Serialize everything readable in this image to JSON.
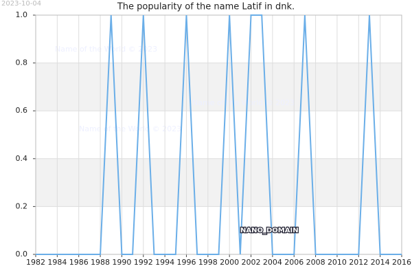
{
  "chart_data": {
    "type": "line",
    "title": "The popularity of the name Latif in dnk.",
    "date_stamp": "2023-10-04",
    "watermark": "Name of the World © 2023",
    "domain_label": "NANO_DOMAIN",
    "x": [
      1982,
      1983,
      1984,
      1985,
      1986,
      1987,
      1988,
      1989,
      1990,
      1991,
      1992,
      1993,
      1994,
      1995,
      1996,
      1997,
      1998,
      1999,
      2000,
      2001,
      2002,
      2003,
      2004,
      2005,
      2006,
      2007,
      2008,
      2009,
      2010,
      2011,
      2012,
      2013,
      2014,
      2015,
      2016
    ],
    "values": [
      0,
      0,
      0,
      0,
      0,
      0,
      0,
      1,
      0,
      0,
      1,
      0,
      0,
      0,
      1,
      0,
      0,
      0,
      1,
      0,
      1,
      1,
      0,
      0,
      0,
      1,
      0,
      0,
      0,
      0,
      0,
      1,
      0,
      0,
      0
    ],
    "color": "#6aaee8",
    "xlim": [
      1982,
      2016
    ],
    "xticks": [
      1982,
      1984,
      1986,
      1988,
      1990,
      1992,
      1994,
      1996,
      1998,
      2000,
      2002,
      2004,
      2006,
      2008,
      2010,
      2012,
      2014,
      2016
    ],
    "ylim": [
      0,
      1
    ],
    "yticks": [
      {
        "value": 0,
        "label": "0.0"
      },
      0.2,
      0.4,
      0.6,
      0.8,
      {
        "value": 1,
        "label": "1.0"
      }
    ],
    "grid": true
  }
}
